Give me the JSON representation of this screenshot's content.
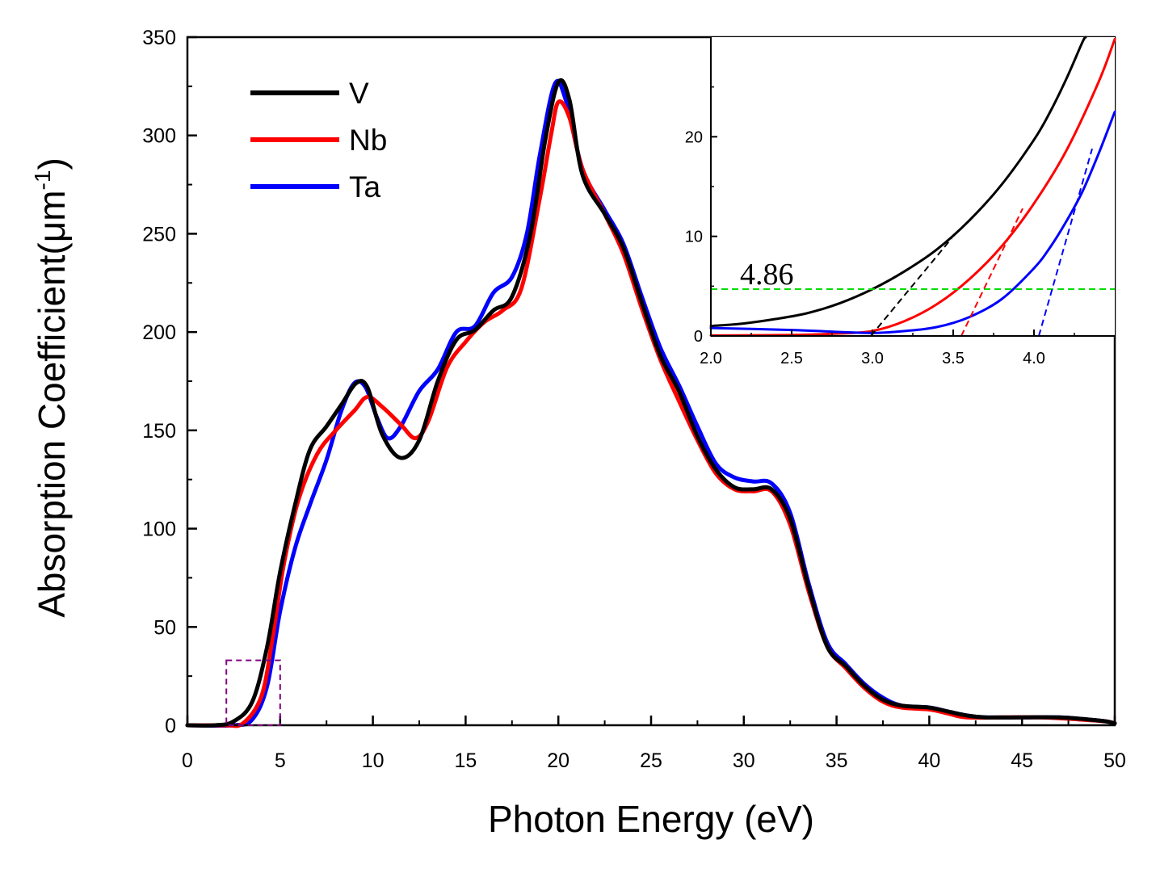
{
  "chart_data": [
    {
      "id": "main",
      "type": "line",
      "xlabel": "Photon Energy (eV)",
      "ylabel_main": "Absorption Coefficient(μm",
      "ylabel_sup": "-1",
      "ylabel_close": ")",
      "xlim": [
        0,
        50
      ],
      "ylim": [
        0,
        350
      ],
      "xticks": [
        0,
        5,
        10,
        15,
        20,
        25,
        30,
        35,
        40,
        45,
        50
      ],
      "yticks": [
        0,
        50,
        100,
        150,
        200,
        250,
        300,
        350
      ],
      "grid": false,
      "legend_position": "top-left",
      "series": [
        {
          "name": "V",
          "color": "#000000",
          "points": [
            [
              0,
              0
            ],
            [
              1.5,
              0
            ],
            [
              2.5,
              2
            ],
            [
              3.5,
              12
            ],
            [
              4.3,
              40
            ],
            [
              5,
              78
            ],
            [
              5.8,
              112
            ],
            [
              6.6,
              140
            ],
            [
              7.5,
              152
            ],
            [
              8.3,
              163
            ],
            [
              9.1,
              174
            ],
            [
              9.7,
              172
            ],
            [
              10.5,
              148
            ],
            [
              11.5,
              136
            ],
            [
              12.5,
              145
            ],
            [
              13.5,
              175
            ],
            [
              14.5,
              196
            ],
            [
              15.5,
              201
            ],
            [
              16.5,
              211
            ],
            [
              17.5,
              218
            ],
            [
              18.5,
              250
            ],
            [
              19.3,
              298
            ],
            [
              20,
              327
            ],
            [
              20.6,
              318
            ],
            [
              21.3,
              280
            ],
            [
              22.5,
              260
            ],
            [
              23.5,
              243
            ],
            [
              24.5,
              215
            ],
            [
              25.5,
              188
            ],
            [
              26.5,
              170
            ],
            [
              27.5,
              147
            ],
            [
              28.5,
              130
            ],
            [
              29.5,
              121
            ],
            [
              30.5,
              120
            ],
            [
              31.5,
              120
            ],
            [
              32.5,
              105
            ],
            [
              33.5,
              70
            ],
            [
              34.5,
              40
            ],
            [
              35.5,
              30
            ],
            [
              36.5,
              20
            ],
            [
              37.5,
              13
            ],
            [
              38.5,
              10
            ],
            [
              40,
              9
            ],
            [
              41,
              7
            ],
            [
              42,
              5
            ],
            [
              43,
              4
            ],
            [
              45,
              4
            ],
            [
              47,
              4
            ],
            [
              48.5,
              3
            ],
            [
              49.5,
              2
            ],
            [
              50,
              1
            ]
          ]
        },
        {
          "name": "Nb",
          "color": "#ff0000",
          "points": [
            [
              0,
              0
            ],
            [
              2,
              0
            ],
            [
              3,
              1
            ],
            [
              4,
              15
            ],
            [
              4.6,
              45
            ],
            [
              5.2,
              82
            ],
            [
              6,
              115
            ],
            [
              7,
              138
            ],
            [
              8,
              150
            ],
            [
              9,
              160
            ],
            [
              9.7,
              167
            ],
            [
              10.5,
              162
            ],
            [
              11.5,
              153
            ],
            [
              12.3,
              146
            ],
            [
              13,
              155
            ],
            [
              14,
              182
            ],
            [
              15,
              195
            ],
            [
              16,
              205
            ],
            [
              17,
              211
            ],
            [
              18,
              222
            ],
            [
              19,
              268
            ],
            [
              19.6,
              300
            ],
            [
              20,
              317
            ],
            [
              20.6,
              309
            ],
            [
              21.3,
              283
            ],
            [
              22.5,
              260
            ],
            [
              23.5,
              240
            ],
            [
              24.5,
              212
            ],
            [
              25.5,
              186
            ],
            [
              26.5,
              165
            ],
            [
              27.5,
              145
            ],
            [
              28.5,
              128
            ],
            [
              29.5,
              120
            ],
            [
              30.5,
              119
            ],
            [
              31.5,
              119
            ],
            [
              32.5,
              102
            ],
            [
              33.5,
              68
            ],
            [
              34.5,
              40
            ],
            [
              35.5,
              29
            ],
            [
              36.5,
              19
            ],
            [
              37.5,
              12
            ],
            [
              38.5,
              9
            ],
            [
              40,
              8
            ],
            [
              41,
              6
            ],
            [
              42,
              4
            ],
            [
              44,
              4
            ],
            [
              46,
              4
            ],
            [
              48,
              3
            ],
            [
              49.5,
              2
            ],
            [
              50,
              1
            ]
          ]
        },
        {
          "name": "Ta",
          "color": "#0000ff",
          "points": [
            [
              0,
              0
            ],
            [
              2.5,
              0
            ],
            [
              3.5,
              3
            ],
            [
              4.3,
              20
            ],
            [
              5,
              58
            ],
            [
              5.8,
              90
            ],
            [
              6.6,
              112
            ],
            [
              7.5,
              135
            ],
            [
              8.3,
              160
            ],
            [
              9,
              174
            ],
            [
              9.6,
              172
            ],
            [
              10.2,
              157
            ],
            [
              10.8,
              146
            ],
            [
              11.5,
              152
            ],
            [
              12.5,
              170
            ],
            [
              13.5,
              181
            ],
            [
              14.5,
              200
            ],
            [
              15.5,
              203
            ],
            [
              16.5,
              220
            ],
            [
              17.5,
              228
            ],
            [
              18.3,
              250
            ],
            [
              19,
              290
            ],
            [
              19.8,
              326
            ],
            [
              20.4,
              318
            ],
            [
              21.3,
              283
            ],
            [
              22.5,
              262
            ],
            [
              23.5,
              245
            ],
            [
              24.5,
              218
            ],
            [
              25.5,
              192
            ],
            [
              26.5,
              173
            ],
            [
              27.5,
              152
            ],
            [
              28.5,
              133
            ],
            [
              29.5,
              126
            ],
            [
              30.5,
              124
            ],
            [
              31.5,
              123
            ],
            [
              32.5,
              108
            ],
            [
              33.5,
              72
            ],
            [
              34.5,
              42
            ],
            [
              35.5,
              31
            ],
            [
              36.5,
              21
            ],
            [
              37.5,
              14
            ],
            [
              38.5,
              10
            ],
            [
              40,
              9
            ],
            [
              41,
              7
            ],
            [
              42,
              5
            ],
            [
              43,
              4
            ],
            [
              45,
              4
            ],
            [
              47,
              4
            ],
            [
              48.5,
              3
            ],
            [
              49.5,
              2
            ],
            [
              50,
              1
            ]
          ]
        }
      ],
      "annotation": {
        "type": "dashed-box",
        "color": "#800080",
        "x_range": [
          2.1,
          5
        ],
        "y_range": [
          0,
          33
        ]
      }
    },
    {
      "id": "inset",
      "type": "line",
      "xlim": [
        2.0,
        4.5
      ],
      "ylim": [
        0,
        30
      ],
      "xticks": [
        2.0,
        2.5,
        3.0,
        3.5,
        4.0
      ],
      "xtick_labels": [
        "2.0",
        "2.5",
        "3.0",
        "3.5",
        "4.0"
      ],
      "yticks": [
        0,
        10,
        20
      ],
      "ytick_labels": [
        "0",
        "10",
        "20"
      ],
      "annotation_text": "4.86",
      "series": [
        {
          "name": "V",
          "color": "#000000",
          "points": [
            [
              2.0,
              1.0
            ],
            [
              2.2,
              1.25
            ],
            [
              2.4,
              1.7
            ],
            [
              2.6,
              2.3
            ],
            [
              2.8,
              3.3
            ],
            [
              3.0,
              4.7
            ],
            [
              3.2,
              6.5
            ],
            [
              3.4,
              8.7
            ],
            [
              3.6,
              11.6
            ],
            [
              3.8,
              15.2
            ],
            [
              4.0,
              19.7
            ],
            [
              4.1,
              22.5
            ],
            [
              4.2,
              25.8
            ],
            [
              4.3,
              29.5
            ],
            [
              4.32,
              30
            ]
          ]
        },
        {
          "name": "Nb",
          "color": "#ff0000",
          "points": [
            [
              2.0,
              0.05
            ],
            [
              2.5,
              0.1
            ],
            [
              2.8,
              0.25
            ],
            [
              3.0,
              0.5
            ],
            [
              3.2,
              1.5
            ],
            [
              3.4,
              3.2
            ],
            [
              3.6,
              5.7
            ],
            [
              3.8,
              9.0
            ],
            [
              4.0,
              13.3
            ],
            [
              4.2,
              18.6
            ],
            [
              4.4,
              25.5
            ],
            [
              4.5,
              29.8
            ]
          ]
        },
        {
          "name": "Ta",
          "color": "#0000ff",
          "points": [
            [
              2.0,
              0.8
            ],
            [
              2.5,
              0.6
            ],
            [
              2.8,
              0.4
            ],
            [
              3.0,
              0.3
            ],
            [
              3.2,
              0.5
            ],
            [
              3.4,
              0.9
            ],
            [
              3.6,
              1.9
            ],
            [
              3.8,
              3.7
            ],
            [
              4.0,
              6.8
            ],
            [
              4.1,
              8.9
            ],
            [
              4.2,
              11.5
            ],
            [
              4.3,
              14.5
            ],
            [
              4.4,
              18.3
            ],
            [
              4.5,
              22.5
            ]
          ]
        }
      ],
      "reference_lines": [
        {
          "name": "level-line",
          "color": "#00dd00",
          "points": [
            [
              2.0,
              4.7
            ],
            [
              4.5,
              4.7
            ]
          ]
        },
        {
          "name": "V-tangent",
          "color": "#000000",
          "points": [
            [
              2.99,
              0
            ],
            [
              3.49,
              9.8
            ]
          ]
        },
        {
          "name": "Nb-tangent",
          "color": "#ff0000",
          "points": [
            [
              3.55,
              0
            ],
            [
              3.93,
              12.8
            ]
          ]
        },
        {
          "name": "Ta-tangent",
          "color": "#0000ff",
          "points": [
            [
              4.03,
              0
            ],
            [
              4.36,
              18.8
            ]
          ]
        }
      ]
    }
  ]
}
